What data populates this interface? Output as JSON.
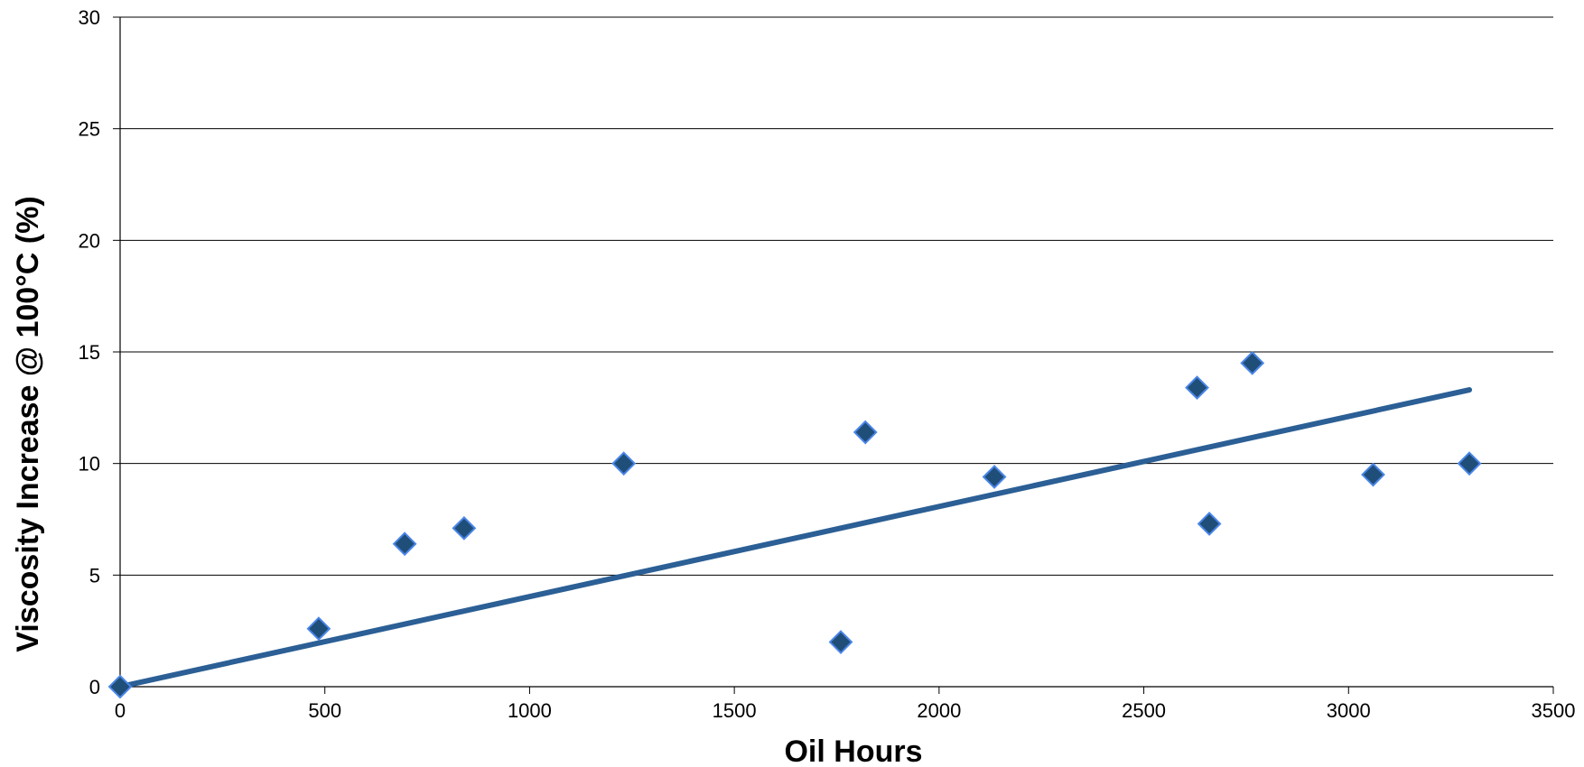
{
  "chart_data": {
    "type": "scatter",
    "xlabel": "Oil Hours",
    "ylabel": "Viscosity Increase @ 100°C (%)",
    "xlim": [
      0,
      3500
    ],
    "ylim": [
      0,
      30
    ],
    "xticks": [
      "0",
      "500",
      "1000",
      "1500",
      "2000",
      "2500",
      "3000",
      "3500"
    ],
    "yticks": [
      "0",
      "5",
      "10",
      "15",
      "20",
      "25",
      "30"
    ],
    "grid": "horizontal",
    "legend": "none",
    "series": [
      {
        "marker": "diamond",
        "points": [
          {
            "x": 0,
            "y": 0
          },
          {
            "x": 485,
            "y": 2.6
          },
          {
            "x": 695,
            "y": 6.4
          },
          {
            "x": 840,
            "y": 7.1
          },
          {
            "x": 1230,
            "y": 10.0
          },
          {
            "x": 1760,
            "y": 2.0
          },
          {
            "x": 1820,
            "y": 11.4
          },
          {
            "x": 2135,
            "y": 9.4
          },
          {
            "x": 2630,
            "y": 13.4
          },
          {
            "x": 2660,
            "y": 7.3
          },
          {
            "x": 2765,
            "y": 14.5
          },
          {
            "x": 3060,
            "y": 9.5
          },
          {
            "x": 3295,
            "y": 10.0
          }
        ]
      }
    ],
    "trendline": {
      "type": "linear",
      "x": [
        0,
        3295
      ],
      "y": [
        0,
        13.3
      ]
    },
    "colors": {
      "marker_fill": "#1F4E79",
      "marker_stroke": "#4A86E8",
      "trendline": "#2B5F95",
      "grid": "#000000"
    }
  }
}
